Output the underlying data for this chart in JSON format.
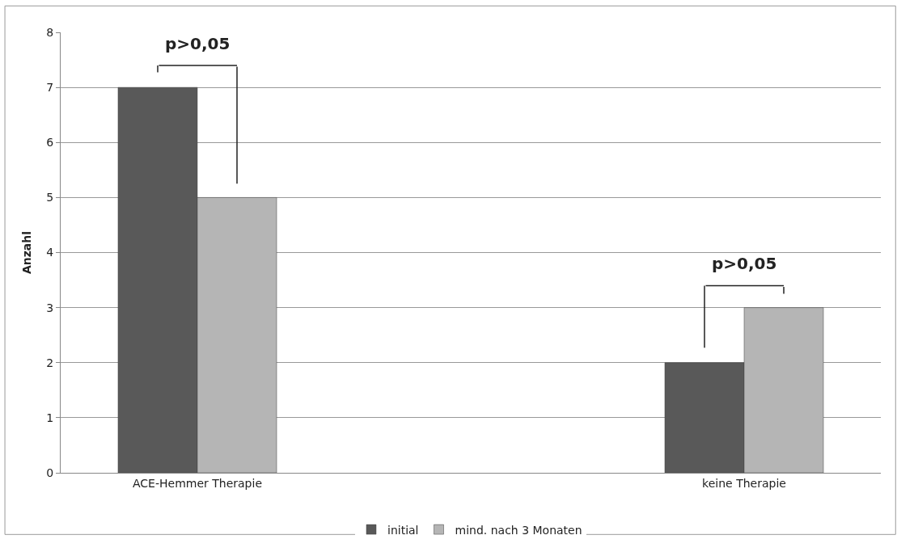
{
  "chart_data": {
    "type": "bar",
    "ylabel": "Anzahl",
    "categories": [
      "ACE-Hemmer Therapie",
      null,
      "keine Therapie"
    ],
    "series": [
      {
        "name": "initial",
        "color": "#595959",
        "values": [
          7,
          null,
          2
        ]
      },
      {
        "name": "mind. nach 3 Monaten",
        "color": "#b5b5b5",
        "values": [
          5,
          null,
          3
        ]
      }
    ],
    "ylim": [
      0,
      8
    ],
    "yticks": [
      0,
      1,
      2,
      3,
      4,
      5,
      6,
      7,
      8
    ],
    "grid": "y",
    "legend": "bottom",
    "annotations": [
      "p>0,05",
      "p>0,05"
    ]
  }
}
